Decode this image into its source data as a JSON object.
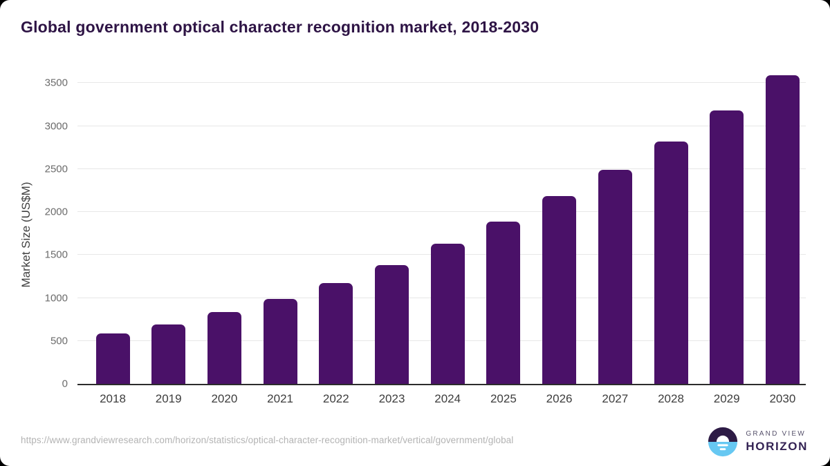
{
  "title": "Global government optical character recognition market, 2018-2030",
  "chart_data": {
    "type": "bar",
    "title": "Global government optical character recognition market, 2018-2030",
    "categories": [
      "2018",
      "2019",
      "2020",
      "2021",
      "2022",
      "2023",
      "2024",
      "2025",
      "2026",
      "2027",
      "2028",
      "2029",
      "2030"
    ],
    "values": [
      585,
      695,
      835,
      990,
      1175,
      1385,
      1630,
      1890,
      2185,
      2490,
      2820,
      3185,
      3590
    ],
    "xlabel": "",
    "ylabel": "Market Size (US$M)",
    "ylim": [
      0,
      3600
    ],
    "yticks": [
      0,
      500,
      1000,
      1500,
      2000,
      2500,
      3000,
      3500
    ],
    "grid": true,
    "legend": "none",
    "bar_color": "#4a1168"
  },
  "footer": {
    "source_url": "https://www.grandviewresearch.com/horizon/statistics/optical-character-recognition-market/vertical/government/global",
    "logo": {
      "line1": "GRAND VIEW",
      "line2": "HORIZON",
      "icon": "horizon-sunrise-icon",
      "icon_top_color": "#2d1b45",
      "icon_bottom_color": "#67c8f2"
    }
  },
  "colors": {
    "background": "#ffffff",
    "page_behind": "#000000",
    "title_text": "#2e1445",
    "bar": "#4a1168",
    "gridline": "#e7e7e7",
    "axis_line": "#2c2c2c",
    "y_tick_text": "#6b6b6b",
    "x_tick_text": "#3d3d3d",
    "url_text": "#b3b3b3"
  }
}
